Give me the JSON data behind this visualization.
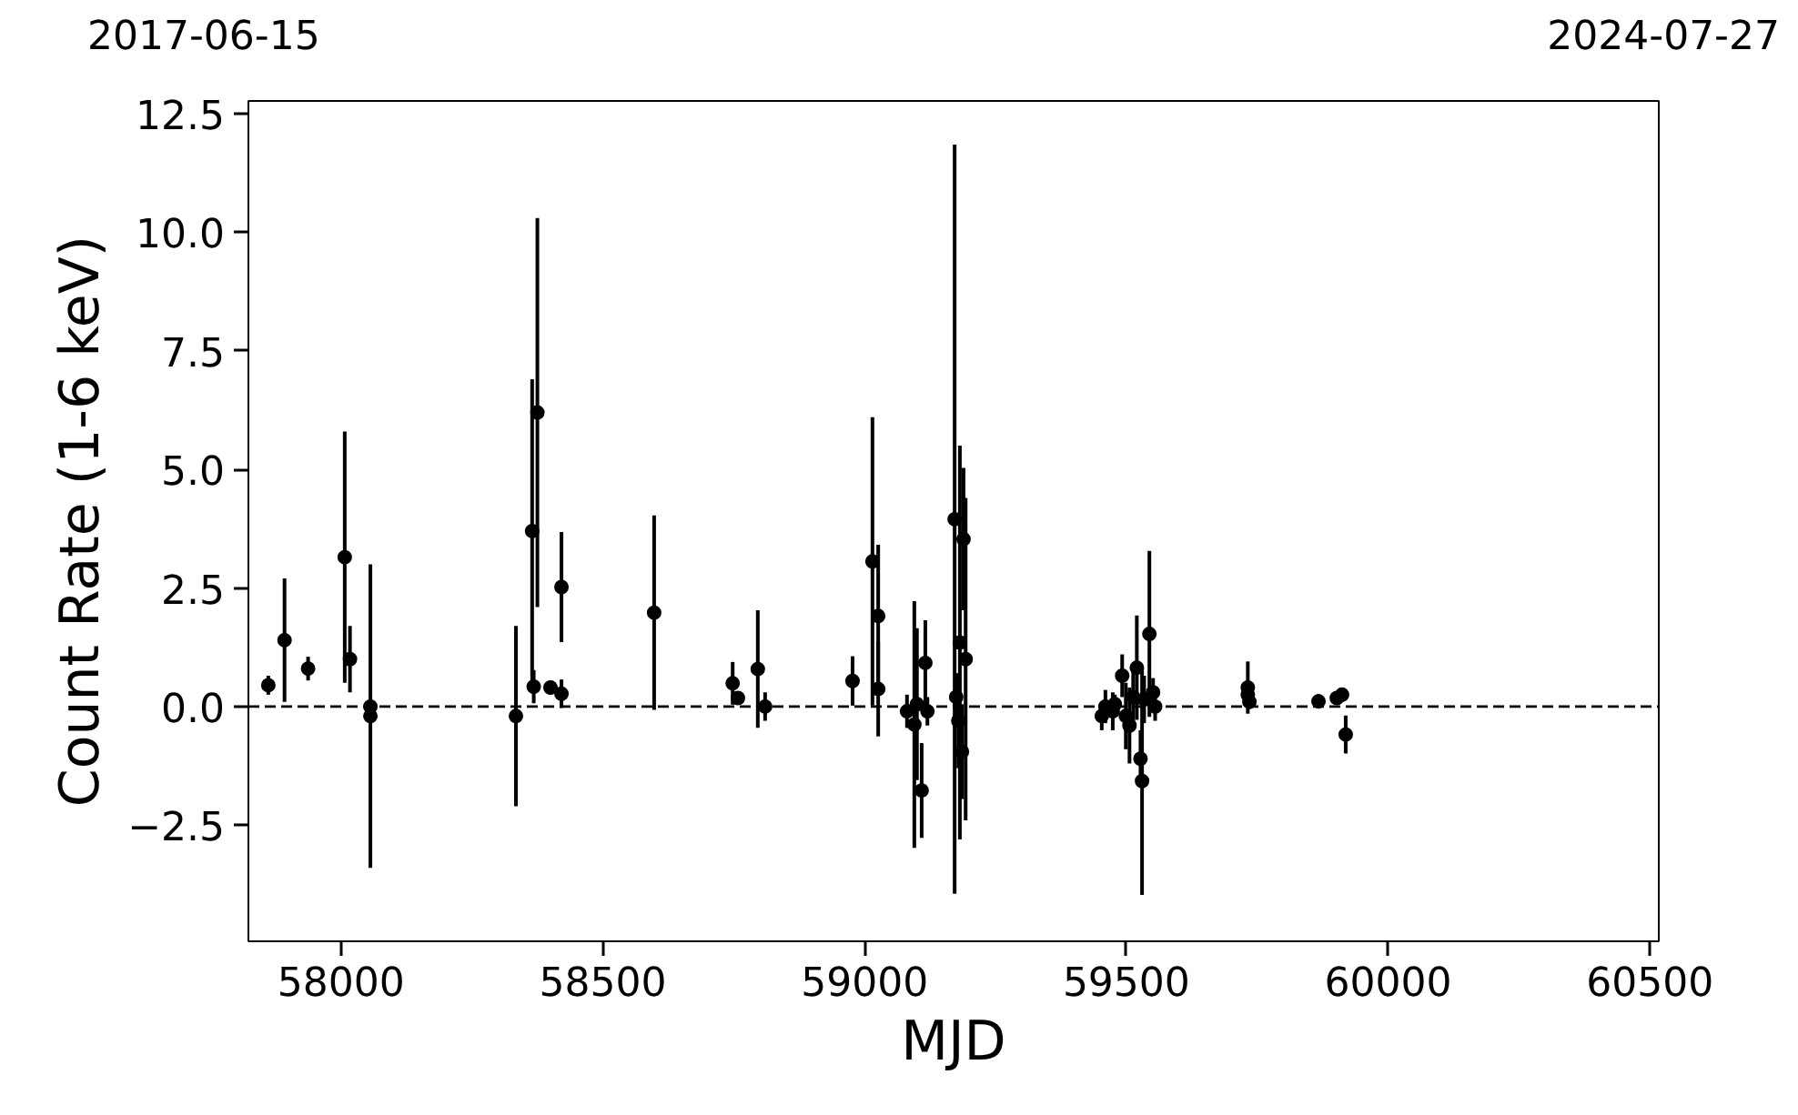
{
  "chart_data": {
    "type": "scatter",
    "xlabel": "MJD",
    "ylabel": "Count Rate (1-6 keV)",
    "x": [
      57861,
      57892,
      57937,
      58007,
      58017,
      58056,
      58056,
      58334,
      58365,
      58368,
      58375,
      58400,
      58421,
      58421,
      58598,
      58748,
      58758,
      58796,
      58810,
      58977,
      59015,
      59026,
      59026,
      59081,
      59095,
      59109,
      59116,
      59120,
      59100,
      59172,
      59175,
      59179,
      59182,
      59186,
      59189,
      59193,
      59186,
      59453,
      59460,
      59474,
      59478,
      59492,
      59499,
      59506,
      59513,
      59520,
      59527,
      59530,
      59534,
      59544,
      59551,
      59555,
      59732,
      59732,
      59735,
      59867,
      59902,
      59912,
      59919
    ],
    "series": [
      {
        "color": "#000000",
        "values": [
          0.45,
          1.4,
          0.8,
          3.15,
          1.0,
          0.0,
          -0.2,
          -0.2,
          3.7,
          0.42,
          6.2,
          0.4,
          2.52,
          0.27,
          1.98,
          0.49,
          0.18,
          0.79,
          0.0,
          0.54,
          3.06,
          1.91,
          0.37,
          -0.1,
          -0.38,
          -1.77,
          0.92,
          -0.1,
          0.05,
          3.95,
          0.2,
          -0.3,
          1.35,
          null,
          3.53,
          1.0,
          -0.95,
          -0.2,
          0.0,
          -0.1,
          0.05,
          0.65,
          -0.2,
          -0.4,
          0.2,
          0.82,
          -1.1,
          -1.57,
          0.15,
          1.53,
          0.3,
          0.0,
          0.4,
          0.25,
          0.1,
          0.11,
          0.18,
          0.25,
          -0.59
        ],
        "errors": [
          0.2,
          1.3,
          0.25,
          2.65,
          0.7,
          0.1,
          3.2,
          1.9,
          3.2,
          0.35,
          4.1,
          0.15,
          1.16,
          0.3,
          2.05,
          0.45,
          0.1,
          1.24,
          0.3,
          0.52,
          3.04,
          1.5,
          1.0,
          0.35,
          2.6,
          1.0,
          0.9,
          0.3,
          1.6,
          7.9,
          0.5,
          1.0,
          4.15,
          null,
          1.5,
          3.4,
          1.0,
          0.3,
          0.35,
          0.4,
          0.2,
          0.45,
          0.7,
          0.8,
          0.6,
          1.1,
          0.6,
          2.4,
          0.5,
          1.75,
          0.3,
          0.3,
          0.55,
          0.2,
          0.15,
          0.15,
          0.12,
          0.15,
          0.4
        ]
      }
    ],
    "marker": "circle",
    "xlim": [
      57823,
      60517
    ],
    "xticks": [
      58000,
      58500,
      59000,
      59500,
      60000,
      60500
    ],
    "ylim": [
      -4.95,
      12.77
    ],
    "yticks": [
      {
        "value": -2.5,
        "label": "−2.5"
      },
      {
        "value": 0,
        "label": "0.0"
      },
      2.5,
      {
        "value": 5,
        "label": "5.0"
      },
      7.5,
      {
        "value": 10,
        "label": "10.0"
      },
      12.5
    ],
    "annotations": [
      "2017-06-15",
      "2024-07-27"
    ],
    "ref_lines": [
      {
        "axis": "y",
        "value": 0,
        "color": "#000000",
        "line_style": "dashed"
      }
    ],
    "grid": false
  }
}
